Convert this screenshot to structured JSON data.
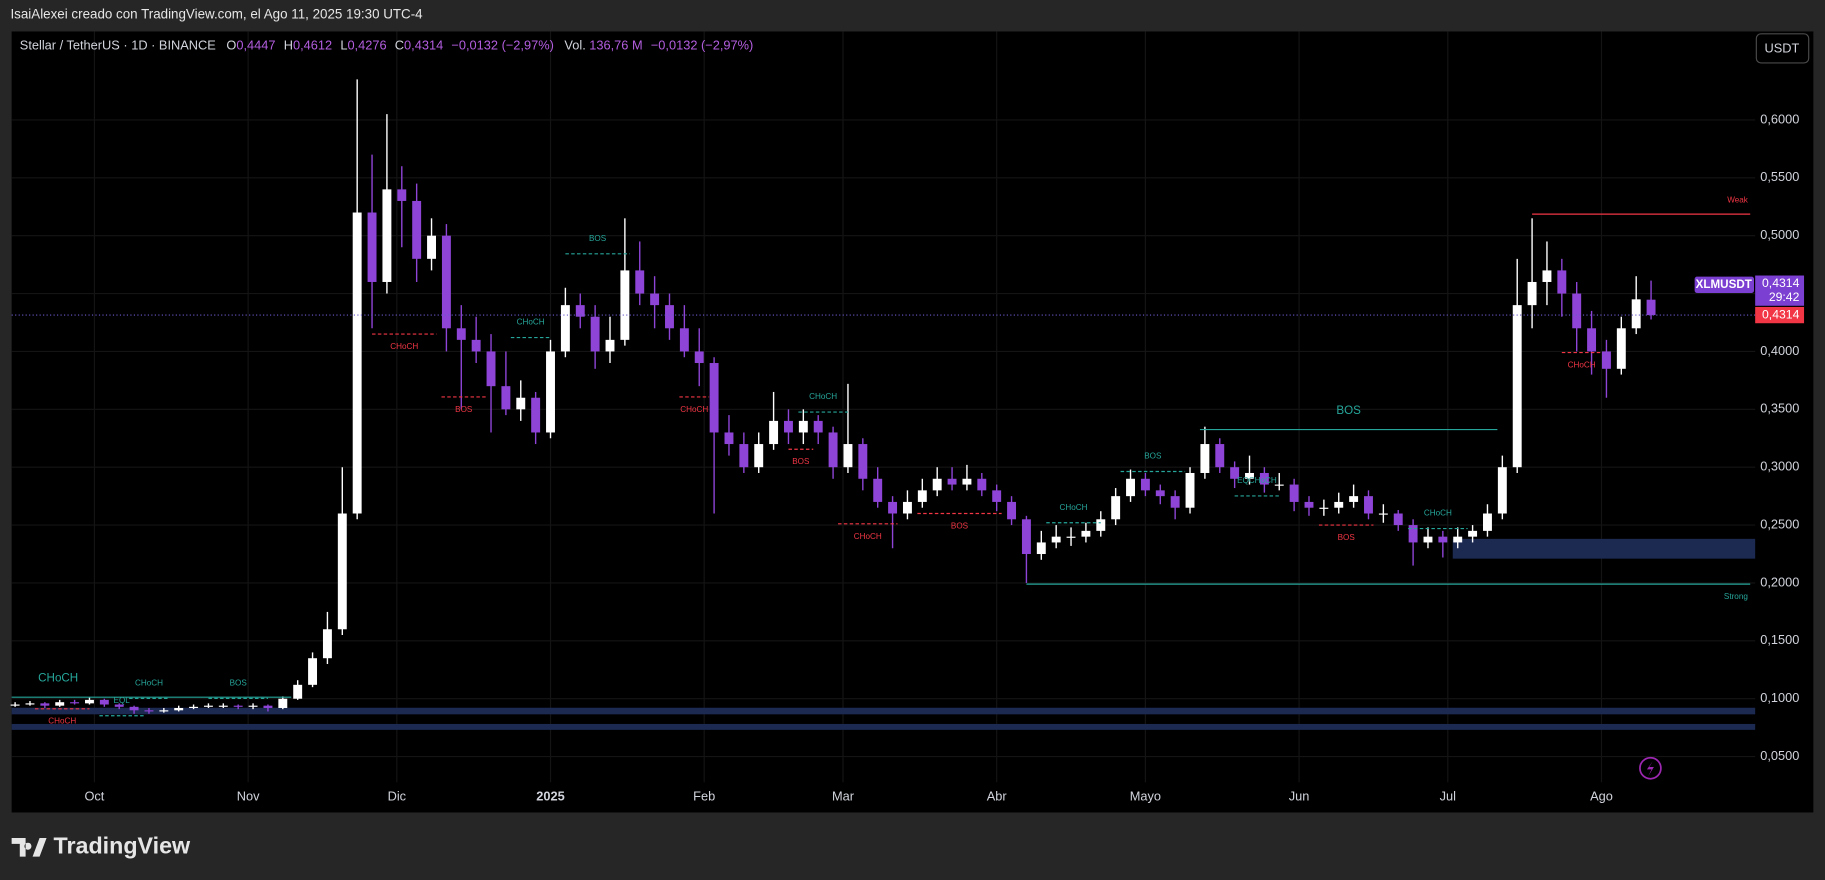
{
  "credit": "IsaiAlexei creado con TradingView.com, el Ago 11, 2025 19:30 UTC-4",
  "currency_button": "USDT",
  "logo": "TradingView",
  "header": {
    "symbol": "Stellar / TetherUS · 1D · BINANCE",
    "o_label": "O",
    "o_value": "0,4447",
    "h_label": "H",
    "h_value": "0,4612",
    "l_label": "L",
    "l_value": "0,4276",
    "c_label": "C",
    "c_value": "0,4314",
    "change": "−0,0132 (−2,97%)",
    "vol_label": "Vol.",
    "vol_value": "136,76 M",
    "vol_change": "−0,0132 (−2,97%)"
  },
  "last_price": {
    "symbol": "XLMUSDT",
    "value": 0.4314,
    "label": "0,4314",
    "countdown": "29:42"
  },
  "chart_data": {
    "type": "candlestick",
    "up_color": "#ffffff",
    "down_color": "#8e44d6",
    "xlim": [
      -16.7,
      335
    ],
    "xticks": [
      {
        "value": 0,
        "label": "Oct"
      },
      {
        "value": 31,
        "label": "Nov"
      },
      {
        "value": 61,
        "label": "Dic"
      },
      {
        "value": 92,
        "label": "2025"
      },
      {
        "value": 123,
        "label": "Feb"
      },
      {
        "value": 151,
        "label": "Mar"
      },
      {
        "value": 182,
        "label": "Abr"
      },
      {
        "value": 212,
        "label": "Mayo"
      },
      {
        "value": 243,
        "label": "Jun"
      },
      {
        "value": 273,
        "label": "Jul"
      },
      {
        "value": 304,
        "label": "Ago"
      }
    ],
    "ylim": [
      0.0279,
      0.6764
    ],
    "yticks": [
      {
        "value": 0.6,
        "label": "0,6000"
      },
      {
        "value": 0.55,
        "label": "0,5500"
      },
      {
        "value": 0.5,
        "label": "0,5000"
      },
      {
        "value": 0.45,
        "label": "0,4500"
      },
      {
        "value": 0.4,
        "label": "0,4000"
      },
      {
        "value": 0.35,
        "label": "0,3500"
      },
      {
        "value": 0.3,
        "label": "0,3000"
      },
      {
        "value": 0.25,
        "label": "0,2500"
      },
      {
        "value": 0.2,
        "label": "0,2000"
      },
      {
        "value": 0.15,
        "label": "0,1500"
      },
      {
        "value": 0.1,
        "label": "0,1000"
      },
      {
        "value": 0.05,
        "label": "0,0500"
      }
    ],
    "grid": true,
    "x": [
      -16,
      -13,
      -10,
      -7,
      -4,
      -1,
      2,
      5,
      8,
      11,
      14,
      17,
      20,
      23,
      26,
      29,
      32,
      35,
      38,
      41,
      44,
      47,
      50,
      53,
      56,
      59,
      62,
      65,
      68,
      71,
      74,
      77,
      80,
      83,
      86,
      89,
      92,
      95,
      98,
      101,
      104,
      107,
      110,
      113,
      116,
      119,
      122,
      125,
      128,
      131,
      134,
      137,
      140,
      143,
      146,
      149,
      152,
      155,
      158,
      161,
      164,
      167,
      170,
      173,
      176,
      179,
      182,
      185,
      188,
      191,
      194,
      197,
      200,
      203,
      206,
      209,
      212,
      215,
      218,
      221,
      224,
      227,
      230,
      233,
      236,
      239,
      242,
      245,
      248,
      251,
      254,
      257,
      260,
      263,
      266,
      269,
      272,
      275,
      278,
      281,
      284,
      287,
      290,
      293,
      296,
      299,
      302,
      305,
      308,
      311,
      314
    ],
    "candles": [
      [
        0.094,
        0.097,
        0.093,
        0.095
      ],
      [
        0.095,
        0.098,
        0.094,
        0.096
      ],
      [
        0.096,
        0.097,
        0.092,
        0.094
      ],
      [
        0.094,
        0.099,
        0.093,
        0.097
      ],
      [
        0.097,
        0.099,
        0.095,
        0.096
      ],
      [
        0.096,
        0.101,
        0.095,
        0.099
      ],
      [
        0.099,
        0.1,
        0.093,
        0.095
      ],
      [
        0.095,
        0.096,
        0.091,
        0.093
      ],
      [
        0.093,
        0.094,
        0.087,
        0.09
      ],
      [
        0.09,
        0.092,
        0.087,
        0.089
      ],
      [
        0.089,
        0.092,
        0.088,
        0.09
      ],
      [
        0.09,
        0.094,
        0.089,
        0.092
      ],
      [
        0.092,
        0.095,
        0.091,
        0.093
      ],
      [
        0.093,
        0.096,
        0.092,
        0.094
      ],
      [
        0.094,
        0.096,
        0.092,
        0.094
      ],
      [
        0.094,
        0.095,
        0.091,
        0.093
      ],
      [
        0.093,
        0.096,
        0.091,
        0.094
      ],
      [
        0.094,
        0.095,
        0.089,
        0.092
      ],
      [
        0.092,
        0.102,
        0.091,
        0.1
      ],
      [
        0.1,
        0.116,
        0.099,
        0.112
      ],
      [
        0.112,
        0.14,
        0.11,
        0.135
      ],
      [
        0.135,
        0.175,
        0.13,
        0.16
      ],
      [
        0.16,
        0.3,
        0.155,
        0.26
      ],
      [
        0.26,
        0.635,
        0.255,
        0.52
      ],
      [
        0.52,
        0.57,
        0.42,
        0.46
      ],
      [
        0.46,
        0.605,
        0.45,
        0.54
      ],
      [
        0.54,
        0.56,
        0.49,
        0.53
      ],
      [
        0.53,
        0.545,
        0.46,
        0.48
      ],
      [
        0.48,
        0.515,
        0.47,
        0.5
      ],
      [
        0.5,
        0.51,
        0.4,
        0.42
      ],
      [
        0.42,
        0.44,
        0.35,
        0.41
      ],
      [
        0.41,
        0.43,
        0.39,
        0.4
      ],
      [
        0.4,
        0.415,
        0.33,
        0.37
      ],
      [
        0.37,
        0.4,
        0.345,
        0.35
      ],
      [
        0.35,
        0.375,
        0.34,
        0.36
      ],
      [
        0.36,
        0.365,
        0.32,
        0.33
      ],
      [
        0.33,
        0.41,
        0.325,
        0.4
      ],
      [
        0.4,
        0.455,
        0.395,
        0.44
      ],
      [
        0.44,
        0.45,
        0.42,
        0.43
      ],
      [
        0.43,
        0.44,
        0.385,
        0.4
      ],
      [
        0.4,
        0.43,
        0.39,
        0.41
      ],
      [
        0.41,
        0.515,
        0.405,
        0.47
      ],
      [
        0.47,
        0.495,
        0.44,
        0.45
      ],
      [
        0.45,
        0.465,
        0.42,
        0.44
      ],
      [
        0.44,
        0.45,
        0.41,
        0.42
      ],
      [
        0.42,
        0.44,
        0.395,
        0.4
      ],
      [
        0.4,
        0.42,
        0.37,
        0.39
      ],
      [
        0.39,
        0.395,
        0.26,
        0.33
      ],
      [
        0.33,
        0.345,
        0.31,
        0.32
      ],
      [
        0.32,
        0.33,
        0.295,
        0.3
      ],
      [
        0.3,
        0.33,
        0.295,
        0.32
      ],
      [
        0.32,
        0.365,
        0.315,
        0.34
      ],
      [
        0.34,
        0.35,
        0.32,
        0.33
      ],
      [
        0.33,
        0.35,
        0.32,
        0.34
      ],
      [
        0.34,
        0.345,
        0.32,
        0.33
      ],
      [
        0.33,
        0.335,
        0.29,
        0.3
      ],
      [
        0.3,
        0.372,
        0.295,
        0.32
      ],
      [
        0.32,
        0.325,
        0.28,
        0.29
      ],
      [
        0.29,
        0.3,
        0.265,
        0.27
      ],
      [
        0.27,
        0.275,
        0.23,
        0.26
      ],
      [
        0.26,
        0.28,
        0.255,
        0.27
      ],
      [
        0.27,
        0.29,
        0.265,
        0.28
      ],
      [
        0.28,
        0.3,
        0.275,
        0.29
      ],
      [
        0.29,
        0.3,
        0.28,
        0.285
      ],
      [
        0.285,
        0.302,
        0.28,
        0.29
      ],
      [
        0.29,
        0.295,
        0.275,
        0.28
      ],
      [
        0.28,
        0.285,
        0.262,
        0.27
      ],
      [
        0.27,
        0.275,
        0.25,
        0.255
      ],
      [
        0.255,
        0.258,
        0.2,
        0.225
      ],
      [
        0.225,
        0.245,
        0.22,
        0.235
      ],
      [
        0.235,
        0.25,
        0.23,
        0.24
      ],
      [
        0.24,
        0.248,
        0.232,
        0.24
      ],
      [
        0.24,
        0.252,
        0.235,
        0.245
      ],
      [
        0.245,
        0.262,
        0.24,
        0.255
      ],
      [
        0.255,
        0.282,
        0.25,
        0.275
      ],
      [
        0.275,
        0.298,
        0.27,
        0.29
      ],
      [
        0.29,
        0.295,
        0.275,
        0.28
      ],
      [
        0.28,
        0.285,
        0.268,
        0.275
      ],
      [
        0.275,
        0.28,
        0.255,
        0.265
      ],
      [
        0.265,
        0.3,
        0.26,
        0.295
      ],
      [
        0.295,
        0.335,
        0.29,
        0.32
      ],
      [
        0.32,
        0.325,
        0.295,
        0.3
      ],
      [
        0.3,
        0.305,
        0.282,
        0.29
      ],
      [
        0.29,
        0.31,
        0.285,
        0.295
      ],
      [
        0.295,
        0.3,
        0.278,
        0.285
      ],
      [
        0.285,
        0.295,
        0.28,
        0.285
      ],
      [
        0.285,
        0.29,
        0.262,
        0.27
      ],
      [
        0.27,
        0.275,
        0.258,
        0.265
      ],
      [
        0.265,
        0.272,
        0.258,
        0.265
      ],
      [
        0.265,
        0.278,
        0.26,
        0.27
      ],
      [
        0.27,
        0.285,
        0.265,
        0.275
      ],
      [
        0.275,
        0.28,
        0.255,
        0.26
      ],
      [
        0.26,
        0.268,
        0.252,
        0.26
      ],
      [
        0.26,
        0.263,
        0.245,
        0.25
      ],
      [
        0.25,
        0.255,
        0.215,
        0.235
      ],
      [
        0.235,
        0.248,
        0.23,
        0.24
      ],
      [
        0.24,
        0.245,
        0.222,
        0.235
      ],
      [
        0.235,
        0.248,
        0.23,
        0.24
      ],
      [
        0.24,
        0.25,
        0.235,
        0.245
      ],
      [
        0.245,
        0.268,
        0.24,
        0.26
      ],
      [
        0.26,
        0.31,
        0.255,
        0.3
      ],
      [
        0.3,
        0.48,
        0.295,
        0.44
      ],
      [
        0.44,
        0.515,
        0.42,
        0.46
      ],
      [
        0.46,
        0.495,
        0.44,
        0.47
      ],
      [
        0.47,
        0.48,
        0.43,
        0.45
      ],
      [
        0.45,
        0.46,
        0.4,
        0.42
      ],
      [
        0.42,
        0.435,
        0.38,
        0.4
      ],
      [
        0.4,
        0.41,
        0.36,
        0.385
      ],
      [
        0.385,
        0.43,
        0.38,
        0.42
      ],
      [
        0.42,
        0.465,
        0.415,
        0.445
      ],
      [
        0.4447,
        0.4612,
        0.4276,
        0.4314
      ]
    ],
    "zones": [
      {
        "x": [
          274,
          335
        ],
        "y": [
          0.2381,
          0.221
        ],
        "color": "#1c2a52"
      },
      {
        "x": [
          -16.7,
          335
        ],
        "y": [
          0.0922,
          0.0865
        ],
        "color": "#1c2a52"
      },
      {
        "x": [
          -16.7,
          335
        ],
        "y": [
          0.0782,
          0.0731
        ],
        "color": "#1c2a52"
      }
    ],
    "annotations": [
      {
        "label": "CHoCH",
        "color": "#26a69a",
        "style": "solid",
        "major": true,
        "x": [
          -16.7,
          39.7
        ],
        "y": 0.1013
      },
      {
        "label": "CHoCH",
        "color": "#f23645",
        "style": "dashed",
        "x": [
          -12,
          -1
        ],
        "y": 0.0913
      },
      {
        "label": "EQL",
        "color": "#26a69a",
        "style": "dashed",
        "x": [
          1,
          10
        ],
        "y": 0.0853
      },
      {
        "label": "CHoCH",
        "color": "#26a69a",
        "style": "dashed",
        "x": [
          7,
          15
        ],
        "y": 0.1003
      },
      {
        "label": "BOS",
        "color": "#26a69a",
        "style": "dashed",
        "x": [
          23,
          35
        ],
        "y": 0.1003
      },
      {
        "label": "CHoCH",
        "color": "#f23645",
        "style": "dashed",
        "x": [
          56,
          69
        ],
        "y": 0.415
      },
      {
        "label": "BOS",
        "color": "#f23645",
        "style": "dashed",
        "x": [
          70,
          79
        ],
        "y": 0.3607
      },
      {
        "label": "CHoCH",
        "color": "#26a69a",
        "style": "dashed",
        "x": [
          84,
          92
        ],
        "y": 0.412
      },
      {
        "label": "BOS",
        "color": "#26a69a",
        "style": "dashed",
        "x": [
          95,
          108
        ],
        "y": 0.4843
      },
      {
        "label": "CHoCH",
        "color": "#f23645",
        "style": "dashed",
        "x": [
          118,
          124
        ],
        "y": 0.3607
      },
      {
        "label": "CHoCH",
        "color": "#26a69a",
        "style": "dashed",
        "x": [
          142,
          152
        ],
        "y": 0.3476
      },
      {
        "label": "BOS",
        "color": "#f23645",
        "style": "dashed",
        "x": [
          140,
          145
        ],
        "y": 0.3155
      },
      {
        "label": "CHoCH",
        "color": "#f23645",
        "style": "dashed",
        "x": [
          150,
          162
        ],
        "y": 0.2511
      },
      {
        "label": "BOS",
        "color": "#f23645",
        "style": "dashed",
        "x": [
          166,
          183
        ],
        "y": 0.26
      },
      {
        "label": "CHoCH",
        "color": "#26a69a",
        "style": "dashed",
        "x": [
          192,
          203
        ],
        "y": 0.252
      },
      {
        "label": "BOS",
        "color": "#26a69a",
        "style": "dashed",
        "x": [
          207,
          220
        ],
        "y": 0.2963
      },
      {
        "label": "EQCHoCH",
        "color": "#26a69a",
        "style": "dashed",
        "x": [
          230,
          239
        ],
        "y": 0.2752
      },
      {
        "label": "BOS",
        "color": "#f23645",
        "style": "dashed",
        "x": [
          247,
          258
        ],
        "y": 0.25
      },
      {
        "label": "CHoCH",
        "color": "#26a69a",
        "style": "dashed",
        "x": [
          265,
          277
        ],
        "y": 0.247
      },
      {
        "label": "BOS",
        "color": "#26a69a",
        "style": "solid",
        "major": true,
        "x": [
          223,
          283
        ],
        "y": 0.3325
      },
      {
        "label": "CHoCH",
        "color": "#f23645",
        "style": "dashed",
        "x": [
          296,
          304
        ],
        "y": 0.399
      },
      {
        "label": "Weak",
        "color": "#f23645",
        "style": "solid",
        "swing": true,
        "x": [
          290,
          334
        ],
        "y": 0.5186
      },
      {
        "label": "Strong",
        "color": "#26a69a",
        "style": "solid",
        "swing": true,
        "x": [
          188,
          334
        ],
        "y": 0.199
      }
    ]
  }
}
